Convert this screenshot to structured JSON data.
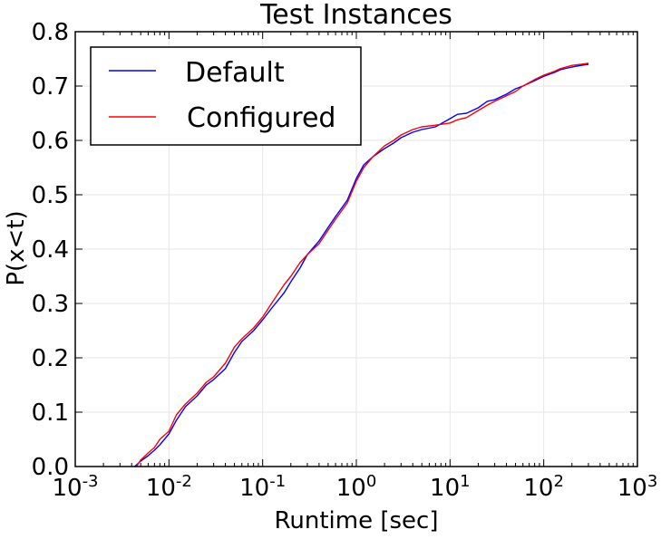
{
  "chart_data": {
    "type": "line",
    "title": "Test Instances",
    "xlabel": "Runtime [sec]",
    "ylabel": "P(x<t)",
    "xscale": "log",
    "xlim": [
      0.001,
      1000
    ],
    "ylim": [
      0.0,
      0.8
    ],
    "xticks": [
      {
        "value": 0.001,
        "base": "10",
        "exp": "-3"
      },
      {
        "value": 0.01,
        "base": "10",
        "exp": "-2"
      },
      {
        "value": 0.1,
        "base": "10",
        "exp": "-1"
      },
      {
        "value": 1,
        "base": "10",
        "exp": "0"
      },
      {
        "value": 10,
        "base": "10",
        "exp": "1"
      },
      {
        "value": 100,
        "base": "10",
        "exp": "2"
      },
      {
        "value": 1000,
        "base": "10",
        "exp": "3"
      }
    ],
    "yticks": [
      {
        "value": 0.0,
        "label": "0.0"
      },
      {
        "value": 0.1,
        "label": "0.1"
      },
      {
        "value": 0.2,
        "label": "0.2"
      },
      {
        "value": 0.3,
        "label": "0.3"
      },
      {
        "value": 0.4,
        "label": "0.4"
      },
      {
        "value": 0.5,
        "label": "0.5"
      },
      {
        "value": 0.6,
        "label": "0.6"
      },
      {
        "value": 0.7,
        "label": "0.7"
      },
      {
        "value": 0.8,
        "label": "0.8"
      }
    ],
    "grid": true,
    "legend_position": "top-left",
    "series": [
      {
        "name": "Default",
        "color": "#0000ff",
        "x": [
          0.0043,
          0.005,
          0.006,
          0.007,
          0.008,
          0.01,
          0.012,
          0.015,
          0.02,
          0.025,
          0.03,
          0.04,
          0.05,
          0.06,
          0.08,
          0.1,
          0.13,
          0.17,
          0.2,
          0.25,
          0.3,
          0.4,
          0.5,
          0.6,
          0.8,
          1.0,
          1.2,
          1.5,
          2.0,
          2.5,
          3.0,
          4.0,
          5.0,
          7.0,
          10,
          12,
          15,
          20,
          25,
          30,
          40,
          50,
          60,
          80,
          100,
          130,
          150,
          200,
          250,
          300
        ],
        "y": [
          0.0,
          0.01,
          0.02,
          0.03,
          0.04,
          0.06,
          0.085,
          0.11,
          0.13,
          0.15,
          0.16,
          0.18,
          0.21,
          0.23,
          0.25,
          0.27,
          0.295,
          0.32,
          0.34,
          0.365,
          0.39,
          0.415,
          0.44,
          0.46,
          0.49,
          0.53,
          0.555,
          0.57,
          0.585,
          0.595,
          0.605,
          0.615,
          0.62,
          0.625,
          0.64,
          0.648,
          0.65,
          0.66,
          0.672,
          0.675,
          0.685,
          0.695,
          0.7,
          0.71,
          0.718,
          0.725,
          0.73,
          0.735,
          0.738,
          0.74
        ]
      },
      {
        "name": "Configured",
        "color": "#ff0000",
        "x": [
          0.0045,
          0.005,
          0.006,
          0.007,
          0.008,
          0.01,
          0.012,
          0.015,
          0.02,
          0.025,
          0.03,
          0.04,
          0.05,
          0.06,
          0.08,
          0.1,
          0.13,
          0.17,
          0.2,
          0.25,
          0.3,
          0.4,
          0.5,
          0.6,
          0.8,
          1.0,
          1.2,
          1.5,
          2.0,
          2.5,
          3.0,
          4.0,
          5.0,
          7.0,
          10,
          12,
          15,
          20,
          25,
          30,
          40,
          50,
          60,
          80,
          100,
          130,
          150,
          200,
          250,
          300
        ],
        "y": [
          0.0,
          0.012,
          0.025,
          0.035,
          0.05,
          0.065,
          0.095,
          0.115,
          0.135,
          0.155,
          0.165,
          0.19,
          0.22,
          0.235,
          0.255,
          0.275,
          0.305,
          0.335,
          0.35,
          0.375,
          0.39,
          0.41,
          0.435,
          0.455,
          0.485,
          0.525,
          0.55,
          0.57,
          0.59,
          0.6,
          0.61,
          0.62,
          0.625,
          0.628,
          0.632,
          0.638,
          0.642,
          0.655,
          0.665,
          0.672,
          0.682,
          0.69,
          0.7,
          0.712,
          0.72,
          0.727,
          0.732,
          0.738,
          0.74,
          0.742
        ]
      }
    ]
  }
}
